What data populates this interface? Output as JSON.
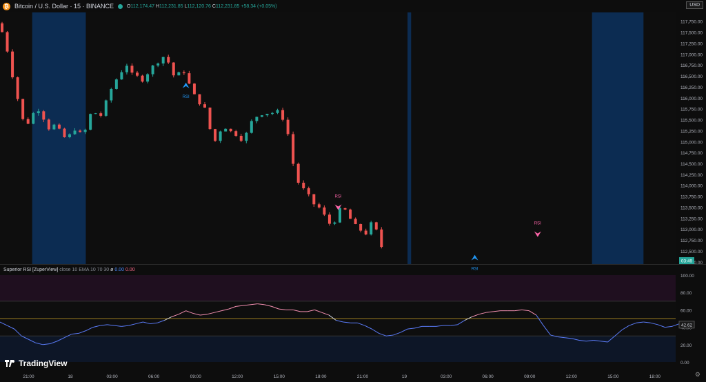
{
  "header": {
    "coin_icon": "bitcoin-icon",
    "symbol": "Bitcoin / U.S. Dollar · 15 · BINANCE",
    "open_label": "O",
    "open": "112,174.47",
    "high_label": "H",
    "high": "112,231.85",
    "low_label": "L",
    "low": "112,120.76",
    "close_label": "C",
    "close": "112,231.85",
    "change": "+58.34 (+0.05%)"
  },
  "currency": "USD",
  "countdown": "03:49",
  "rsi_title": {
    "name": "Superior RSI [ZuperView]",
    "params": "close 10 EMA 10 70 30",
    "symbol": "ø",
    "v1": "0.00",
    "v2": "0.00"
  },
  "rsi_current": "42.62",
  "brand": "TradingView",
  "colors": {
    "up": "#26a69a",
    "down": "#ef5350",
    "blue_band": "#0c2c52",
    "overbought": "#f48fb1",
    "oversold": "#5b7cfa",
    "buy": "#2196f3",
    "sell": "#ff66aa"
  },
  "chart_data": [
    {
      "type": "candlestick",
      "title": "Bitcoin / U.S. Dollar · 15 · BINANCE",
      "y_ticks": [
        "117,750.00",
        "117,500.00",
        "117,250.00",
        "117,000.00",
        "116,750.00",
        "116,500.00",
        "116,250.00",
        "116,000.00",
        "115,750.00",
        "115,500.00",
        "115,250.00",
        "115,000.00",
        "114,750.00",
        "114,500.00",
        "114,250.00",
        "114,000.00",
        "113,750.00",
        "113,500.00",
        "113,250.00",
        "113,000.00",
        "112,750.00",
        "112,500.00",
        "112,250.00"
      ],
      "ylim": [
        112200,
        117950
      ],
      "x_ticks": [
        "21:00",
        "18",
        "03:00",
        "06:00",
        "09:00",
        "12:00",
        "15:00",
        "18:00",
        "21:00",
        "19",
        "03:00",
        "06:00",
        "09:00",
        "12:00",
        "15:00",
        "18:00"
      ],
      "price_path": [
        [
          0,
          117700
        ],
        [
          6,
          117550
        ],
        [
          12,
          117250
        ],
        [
          18,
          116800
        ],
        [
          24,
          116300
        ],
        [
          30,
          115900
        ],
        [
          36,
          115500
        ],
        [
          42,
          115380
        ],
        [
          48,
          115600
        ],
        [
          54,
          115700
        ],
        [
          60,
          115750
        ],
        [
          66,
          115500
        ],
        [
          72,
          115300
        ],
        [
          78,
          115400
        ],
        [
          84,
          115300
        ],
        [
          90,
          115200
        ],
        [
          96,
          115050
        ],
        [
          102,
          115150
        ],
        [
          108,
          115300
        ],
        [
          114,
          115200
        ],
        [
          120,
          115150
        ],
        [
          126,
          115350
        ],
        [
          132,
          115700
        ],
        [
          138,
          115650
        ],
        [
          144,
          115550
        ],
        [
          150,
          115800
        ],
        [
          156,
          116050
        ],
        [
          162,
          116300
        ],
        [
          168,
          116450
        ],
        [
          174,
          116600
        ],
        [
          180,
          116800
        ],
        [
          186,
          116600
        ],
        [
          192,
          116450
        ],
        [
          198,
          116500
        ],
        [
          204,
          116400
        ],
        [
          210,
          116550
        ],
        [
          216,
          116700
        ],
        [
          222,
          116750
        ],
        [
          228,
          116900
        ],
        [
          234,
          116950
        ],
        [
          240,
          116800
        ],
        [
          246,
          116500
        ],
        [
          252,
          116600
        ],
        [
          258,
          116450
        ],
        [
          264,
          116700
        ],
        [
          270,
          116200
        ],
        [
          276,
          116050
        ],
        [
          282,
          115900
        ],
        [
          288,
          115850
        ],
        [
          294,
          115600
        ],
        [
          300,
          115100
        ],
        [
          306,
          115000
        ],
        [
          312,
          115250
        ],
        [
          318,
          115350
        ],
        [
          324,
          115250
        ],
        [
          330,
          115200
        ],
        [
          336,
          115150
        ],
        [
          342,
          115050
        ],
        [
          348,
          115150
        ],
        [
          354,
          115400
        ],
        [
          360,
          115550
        ],
        [
          366,
          115600
        ],
        [
          372,
          115650
        ],
        [
          378,
          115650
        ],
        [
          384,
          115650
        ],
        [
          390,
          115700
        ],
        [
          396,
          115650
        ],
        [
          402,
          115450
        ],
        [
          408,
          115100
        ],
        [
          414,
          114500
        ],
        [
          420,
          114100
        ],
        [
          426,
          113950
        ],
        [
          432,
          113850
        ],
        [
          438,
          113700
        ],
        [
          444,
          113550
        ],
        [
          450,
          113500
        ],
        [
          456,
          113350
        ],
        [
          462,
          113200
        ],
        [
          468,
          113050
        ],
        [
          474,
          113250
        ],
        [
          480,
          113450
        ],
        [
          486,
          113450
        ],
        [
          492,
          113300
        ],
        [
          498,
          113100
        ],
        [
          504,
          113050
        ],
        [
          510,
          112950
        ],
        [
          516,
          112900
        ],
        [
          522,
          113100
        ],
        [
          528,
          113200
        ],
        [
          534,
          112600
        ]
      ],
      "highlight_bands_min": [
        [
          45,
          120
        ],
        [
          570,
          575
        ],
        [
          828,
          900
        ]
      ],
      "signals": [
        {
          "type": "buy",
          "label": "RSI",
          "at_min": 260
        },
        {
          "type": "sell",
          "label": "RSI",
          "at_min": 473
        },
        {
          "type": "buy",
          "label": "RSI",
          "at_min": 664
        },
        {
          "type": "sell",
          "label": "RSI",
          "at_min": 752
        }
      ]
    },
    {
      "type": "line",
      "title": "Superior RSI [ZuperView]",
      "y_ticks": [
        "100.00",
        "80.00",
        "60.00",
        "40.00",
        "20.00",
        "0.00"
      ],
      "ylim": [
        0,
        100
      ],
      "levels": [
        70,
        50,
        30
      ],
      "rsi_path": [
        [
          0,
          46
        ],
        [
          10,
          42
        ],
        [
          20,
          38
        ],
        [
          30,
          30
        ],
        [
          40,
          26
        ],
        [
          50,
          22
        ],
        [
          60,
          20
        ],
        [
          70,
          21
        ],
        [
          80,
          24
        ],
        [
          90,
          28
        ],
        [
          100,
          32
        ],
        [
          110,
          33
        ],
        [
          120,
          36
        ],
        [
          130,
          40
        ],
        [
          140,
          42
        ],
        [
          150,
          43
        ],
        [
          160,
          42
        ],
        [
          170,
          41
        ],
        [
          180,
          42
        ],
        [
          190,
          44
        ],
        [
          200,
          46
        ],
        [
          210,
          44
        ],
        [
          220,
          45
        ],
        [
          230,
          48
        ],
        [
          240,
          52
        ],
        [
          250,
          55
        ],
        [
          260,
          59
        ],
        [
          270,
          56
        ],
        [
          280,
          54
        ],
        [
          290,
          55
        ],
        [
          300,
          57
        ],
        [
          310,
          59
        ],
        [
          320,
          61
        ],
        [
          330,
          64
        ],
        [
          340,
          65
        ],
        [
          350,
          66
        ],
        [
          360,
          67
        ],
        [
          370,
          66
        ],
        [
          380,
          64
        ],
        [
          390,
          61
        ],
        [
          400,
          60
        ],
        [
          410,
          60
        ],
        [
          420,
          58
        ],
        [
          430,
          58
        ],
        [
          440,
          60
        ],
        [
          450,
          57
        ],
        [
          460,
          54
        ],
        [
          470,
          48
        ],
        [
          480,
          46
        ],
        [
          490,
          45
        ],
        [
          500,
          45
        ],
        [
          510,
          42
        ],
        [
          520,
          38
        ],
        [
          530,
          33
        ],
        [
          540,
          30
        ],
        [
          550,
          31
        ],
        [
          560,
          34
        ],
        [
          570,
          38
        ],
        [
          580,
          39
        ],
        [
          590,
          41
        ],
        [
          600,
          41
        ],
        [
          610,
          41
        ],
        [
          620,
          42
        ],
        [
          630,
          42
        ],
        [
          640,
          43
        ],
        [
          650,
          48
        ],
        [
          660,
          52
        ],
        [
          670,
          55
        ],
        [
          680,
          57
        ],
        [
          690,
          58
        ],
        [
          700,
          59
        ],
        [
          710,
          59
        ],
        [
          720,
          59
        ],
        [
          730,
          60
        ],
        [
          740,
          59
        ],
        [
          750,
          54
        ],
        [
          760,
          42
        ],
        [
          770,
          31
        ],
        [
          780,
          29
        ],
        [
          790,
          28
        ],
        [
          800,
          27
        ],
        [
          810,
          25
        ],
        [
          820,
          24
        ],
        [
          830,
          25
        ],
        [
          840,
          24
        ],
        [
          850,
          23
        ],
        [
          860,
          30
        ],
        [
          870,
          37
        ],
        [
          880,
          42
        ],
        [
          890,
          45
        ],
        [
          900,
          46
        ],
        [
          910,
          45
        ],
        [
          920,
          43
        ],
        [
          930,
          40
        ],
        [
          940,
          41
        ],
        [
          950,
          44
        ],
        [
          960,
          46
        ],
        [
          970,
          43
        ]
      ]
    }
  ]
}
